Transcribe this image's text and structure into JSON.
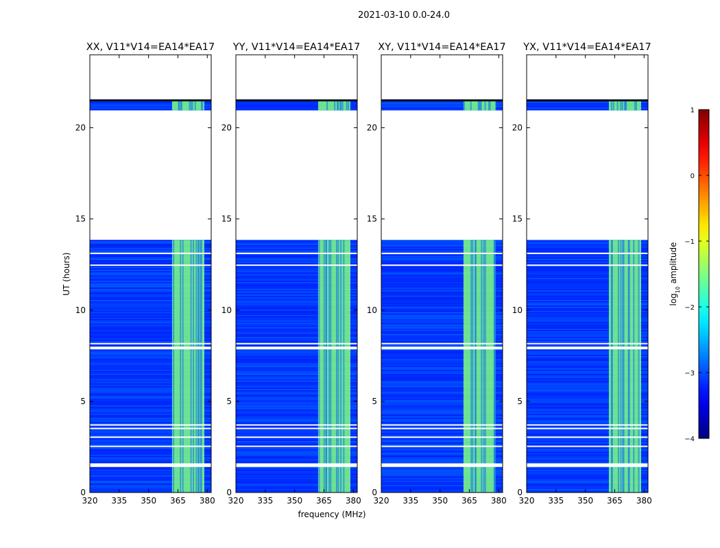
{
  "chart_data": {
    "type": "heatmap",
    "title": "2021-03-10 0.0-24.0",
    "xlabel": "frequency (MHz)",
    "ylabel": "UT (hours)",
    "xlim": [
      320,
      382
    ],
    "ylim": [
      0,
      24
    ],
    "xticks": [
      "320",
      "335",
      "350",
      "365",
      "380"
    ],
    "yticks": [
      "0",
      "5",
      "10",
      "15",
      "20"
    ],
    "colorbar": {
      "label_main": "log",
      "label_sub": "10",
      "label_rest": " amplitude",
      "range": [
        -4,
        1
      ],
      "ticks": [
        "1",
        "0",
        "−1",
        "−2",
        "−3",
        "−4"
      ],
      "colormap": "jet"
    },
    "panels": [
      {
        "title": "XX, V11*V14=EA14*EA17",
        "show_ylabel": true,
        "show_xlabel": false
      },
      {
        "title": "YY, V11*V14=EA14*EA17",
        "show_ylabel": false,
        "show_xlabel": true
      },
      {
        "title": "XY, V11*V14=EA14*EA17",
        "show_ylabel": false,
        "show_xlabel": false
      },
      {
        "title": "YX, V11*V14=EA14*EA17",
        "show_ylabel": false,
        "show_xlabel": false
      }
    ],
    "data_time_ranges_hours": [
      [
        0,
        13.85
      ],
      [
        20.95,
        21.55
      ]
    ],
    "data_gaps_hours": [
      [
        1.4,
        1.6
      ],
      [
        2.5,
        2.57
      ],
      [
        3.0,
        3.07
      ],
      [
        3.48,
        3.55
      ],
      [
        3.68,
        3.74
      ],
      [
        7.85,
        8.0
      ],
      [
        8.15,
        8.2
      ],
      [
        12.45,
        12.5
      ],
      [
        13.1,
        13.15
      ]
    ],
    "flagged_rows_hours": [
      [
        21.25,
        21.55
      ]
    ],
    "band_rows_level": -2.5,
    "band_rfi_mhz": [
      362,
      382
    ],
    "band_rfi_level": -1.5,
    "background_level": -3.1
  }
}
